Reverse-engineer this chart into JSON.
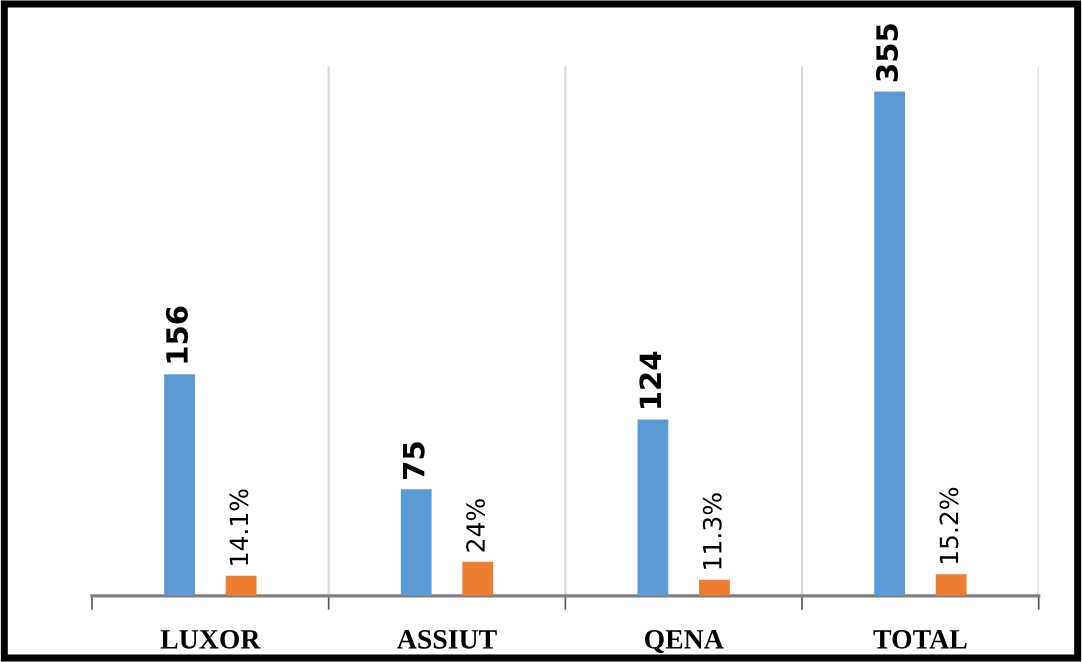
{
  "chart_data": {
    "type": "bar",
    "categories": [
      "LUXOR",
      "ASSIUT",
      "QENA",
      "TOTAL"
    ],
    "series": [
      {
        "color": "#5b9bd5",
        "values": [
          156,
          75,
          124,
          355
        ],
        "value_labels": [
          "156",
          "75",
          "124",
          "355"
        ]
      },
      {
        "color": "#ed7d31",
        "values": [
          14.1,
          24,
          11.3,
          15.2
        ],
        "value_labels": [
          "14.1%",
          "24%",
          "11.3%",
          "15.2%"
        ]
      }
    ],
    "grid": "x",
    "legend": false
  }
}
